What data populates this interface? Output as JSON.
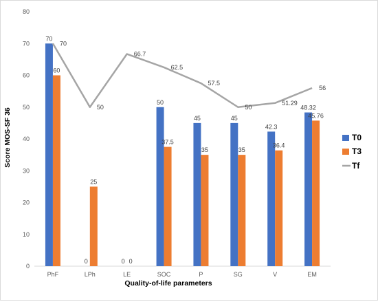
{
  "chart_data": {
    "type": "bar",
    "title": "",
    "xlabel": "Quality-of-life parameters",
    "ylabel": "Score MOS-SF 36",
    "ylim": [
      0,
      80
    ],
    "yticks": [
      0,
      10,
      20,
      30,
      40,
      50,
      60,
      70,
      80
    ],
    "grid": false,
    "legend_position": "right",
    "categories": [
      "PhF",
      "LPh",
      "LE",
      "SOC",
      "P",
      "SG",
      "V",
      "EM"
    ],
    "series": [
      {
        "name": "T0",
        "kind": "bar",
        "color": "#4472C4",
        "values": [
          70,
          0,
          0,
          50,
          45,
          45,
          42.3,
          48.32
        ],
        "labels": [
          "70",
          "0",
          "0",
          "50",
          "45",
          "45",
          "42.3",
          "48.32"
        ]
      },
      {
        "name": "T3",
        "kind": "bar",
        "color": "#ED7D31",
        "values": [
          60,
          25,
          0,
          37.5,
          35,
          35,
          36.4,
          45.76
        ],
        "labels": [
          "60",
          "25",
          "0",
          "37.5",
          "35",
          "35",
          "36.4",
          "45.76"
        ]
      },
      {
        "name": "Tf",
        "kind": "line",
        "color": "#A5A5A5",
        "values": [
          70,
          50,
          66.7,
          62.5,
          57.5,
          50,
          51.29,
          56
        ],
        "labels": [
          "70",
          "50",
          "66.7",
          "62.5",
          "57.5",
          "50",
          "51.29",
          "56"
        ]
      }
    ]
  }
}
